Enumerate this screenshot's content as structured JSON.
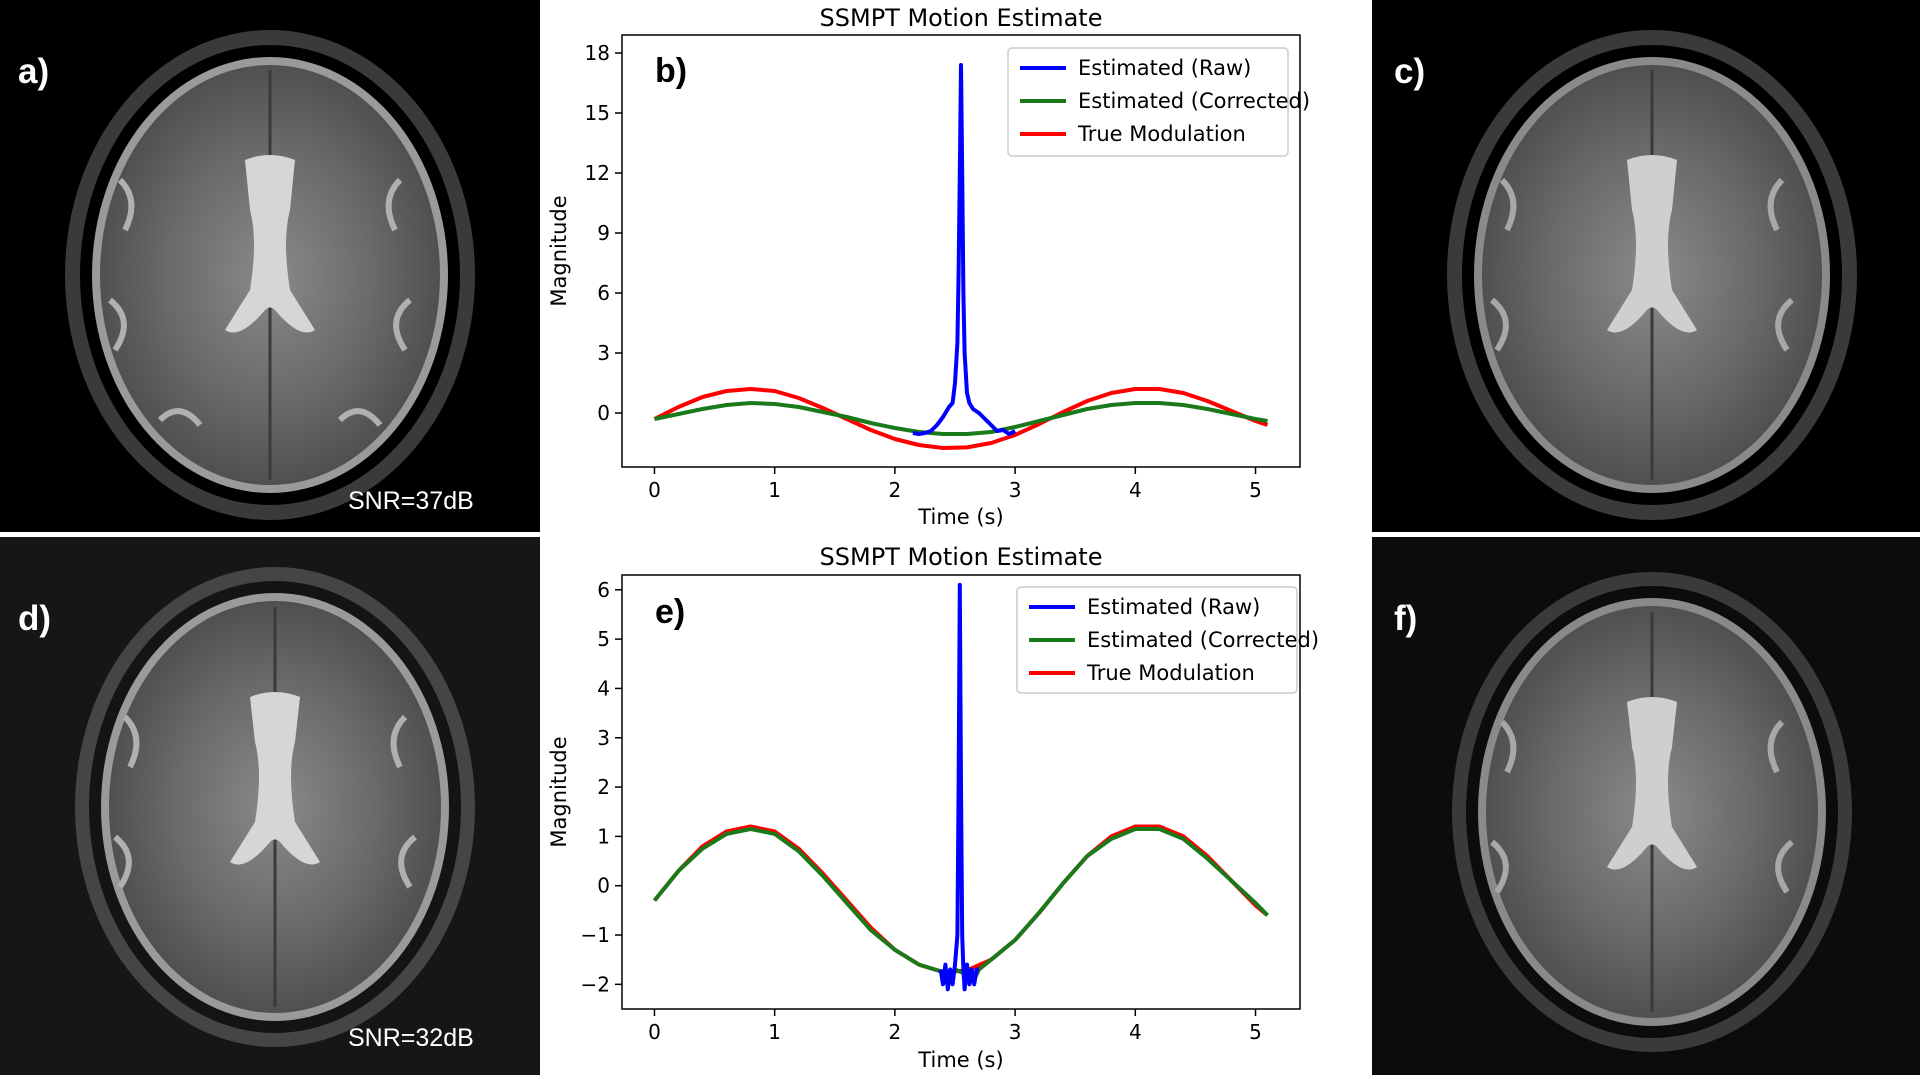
{
  "panels": {
    "a": {
      "label": "a)",
      "snr": "SNR=37dB"
    },
    "c": {
      "label": "c)"
    },
    "d": {
      "label": "d)",
      "snr": "SNR=32dB"
    },
    "f": {
      "label": "f)"
    }
  },
  "colors": {
    "raw": "#0000ff",
    "corrected": "#1a7a1a",
    "true": "#ff0000",
    "background": "#000000"
  },
  "chart_data": [
    {
      "type": "line",
      "panel_label": "b)",
      "title": "SSMPT Motion Estimate",
      "xlabel": "Time (s)",
      "ylabel": "Magnitude",
      "xlim": [
        -0.27,
        5.37
      ],
      "ylim": [
        -2.7,
        18.9
      ],
      "xticks": [
        0,
        1,
        2,
        3,
        4,
        5
      ],
      "yticks": [
        0,
        3,
        6,
        9,
        12,
        15,
        18
      ],
      "ytick_labels": [
        "0",
        "3",
        "6",
        "9",
        "12",
        "15",
        "18"
      ],
      "legend_position": "top-right",
      "series": [
        {
          "name": "Estimated (Raw)",
          "color": "#0000ff",
          "x": [
            2.15,
            2.2,
            2.25,
            2.3,
            2.35,
            2.4,
            2.42,
            2.45,
            2.48,
            2.5,
            2.52,
            2.53,
            2.54,
            2.55,
            2.56,
            2.57,
            2.58,
            2.6,
            2.62,
            2.65,
            2.7,
            2.75,
            2.8,
            2.85,
            2.9,
            2.95,
            3.0
          ],
          "y": [
            -1.0,
            -1.05,
            -1.0,
            -0.9,
            -0.6,
            -0.2,
            0.0,
            0.3,
            0.5,
            1.5,
            3.5,
            7.0,
            12.0,
            17.4,
            12.0,
            6.0,
            3.0,
            1.0,
            0.5,
            0.2,
            0.0,
            -0.3,
            -0.6,
            -0.9,
            -0.85,
            -1.05,
            -0.9
          ]
        },
        {
          "name": "Estimated (Corrected)",
          "color": "#1a7a1a",
          "x": [
            0,
            0.2,
            0.4,
            0.6,
            0.8,
            1.0,
            1.2,
            1.4,
            1.6,
            1.8,
            2.0,
            2.2,
            2.4,
            2.6,
            2.8,
            3.0,
            3.2,
            3.4,
            3.6,
            3.8,
            4.0,
            4.2,
            4.4,
            4.6,
            4.8,
            5.0,
            5.1
          ],
          "y": [
            -0.3,
            -0.05,
            0.2,
            0.4,
            0.5,
            0.45,
            0.3,
            0.05,
            -0.2,
            -0.5,
            -0.75,
            -0.95,
            -1.05,
            -1.05,
            -0.95,
            -0.7,
            -0.4,
            -0.1,
            0.2,
            0.4,
            0.5,
            0.5,
            0.4,
            0.2,
            -0.05,
            -0.3,
            -0.4
          ]
        },
        {
          "name": "True Modulation",
          "color": "#ff0000",
          "x": [
            0,
            0.2,
            0.4,
            0.6,
            0.8,
            1.0,
            1.2,
            1.4,
            1.6,
            1.8,
            2.0,
            2.2,
            2.4,
            2.6,
            2.8,
            3.0,
            3.2,
            3.4,
            3.6,
            3.8,
            4.0,
            4.2,
            4.4,
            4.6,
            4.8,
            5.0,
            5.1
          ],
          "y": [
            -0.3,
            0.3,
            0.8,
            1.1,
            1.2,
            1.1,
            0.75,
            0.25,
            -0.3,
            -0.85,
            -1.3,
            -1.6,
            -1.75,
            -1.72,
            -1.5,
            -1.1,
            -0.55,
            0.05,
            0.6,
            1.0,
            1.2,
            1.2,
            1.0,
            0.6,
            0.1,
            -0.4,
            -0.6
          ]
        }
      ]
    },
    {
      "type": "line",
      "panel_label": "e)",
      "title": "SSMPT Motion Estimate",
      "xlabel": "Time (s)",
      "ylabel": "Magnitude",
      "xlim": [
        -0.27,
        5.37
      ],
      "ylim": [
        -2.5,
        6.3
      ],
      "xticks": [
        0,
        1,
        2,
        3,
        4,
        5
      ],
      "yticks": [
        -2,
        -1,
        0,
        1,
        2,
        3,
        4,
        5,
        6
      ],
      "ytick_labels": [
        "−2",
        "−1",
        "0",
        "1",
        "2",
        "3",
        "4",
        "5",
        "6"
      ],
      "legend_position": "top-right",
      "series": [
        {
          "name": "Estimated (Raw)",
          "color": "#0000ff",
          "x": [
            2.38,
            2.4,
            2.42,
            2.44,
            2.46,
            2.48,
            2.5,
            2.52,
            2.53,
            2.54,
            2.55,
            2.56,
            2.57,
            2.58,
            2.6,
            2.62,
            2.64,
            2.66,
            2.68,
            2.7
          ],
          "y": [
            -1.7,
            -2.0,
            -1.6,
            -2.1,
            -1.7,
            -2.0,
            -1.6,
            -1.0,
            2.0,
            6.1,
            2.0,
            -1.0,
            -1.7,
            -2.1,
            -1.6,
            -2.0,
            -1.7,
            -2.0,
            -1.7,
            -1.7
          ]
        },
        {
          "name": "Estimated (Corrected)",
          "color": "#1a7a1a",
          "x": [
            0,
            0.2,
            0.4,
            0.6,
            0.8,
            1.0,
            1.2,
            1.4,
            1.6,
            1.8,
            2.0,
            2.2,
            2.4,
            2.45,
            2.5,
            2.6,
            2.65,
            2.7,
            2.8,
            3.0,
            3.2,
            3.4,
            3.6,
            3.8,
            4.0,
            4.2,
            4.4,
            4.6,
            4.8,
            5.0,
            5.1
          ],
          "y": [
            -0.3,
            0.3,
            0.75,
            1.05,
            1.15,
            1.05,
            0.7,
            0.2,
            -0.35,
            -0.9,
            -1.3,
            -1.6,
            -1.75,
            -1.95,
            -1.7,
            -1.8,
            -1.95,
            -1.7,
            -1.5,
            -1.1,
            -0.55,
            0.05,
            0.6,
            0.95,
            1.15,
            1.15,
            0.95,
            0.55,
            0.1,
            -0.35,
            -0.6
          ]
        },
        {
          "name": "True Modulation",
          "color": "#ff0000",
          "x": [
            0,
            0.2,
            0.4,
            0.6,
            0.8,
            1.0,
            1.2,
            1.4,
            1.6,
            1.8,
            2.0,
            2.2,
            2.4,
            2.6,
            2.8,
            3.0,
            3.2,
            3.4,
            3.6,
            3.8,
            4.0,
            4.2,
            4.4,
            4.6,
            4.8,
            5.0,
            5.1
          ],
          "y": [
            -0.3,
            0.3,
            0.8,
            1.1,
            1.2,
            1.1,
            0.75,
            0.25,
            -0.3,
            -0.85,
            -1.3,
            -1.6,
            -1.75,
            -1.72,
            -1.5,
            -1.1,
            -0.55,
            0.05,
            0.6,
            1.0,
            1.2,
            1.2,
            1.0,
            0.6,
            0.1,
            -0.4,
            -0.6
          ]
        }
      ]
    }
  ]
}
